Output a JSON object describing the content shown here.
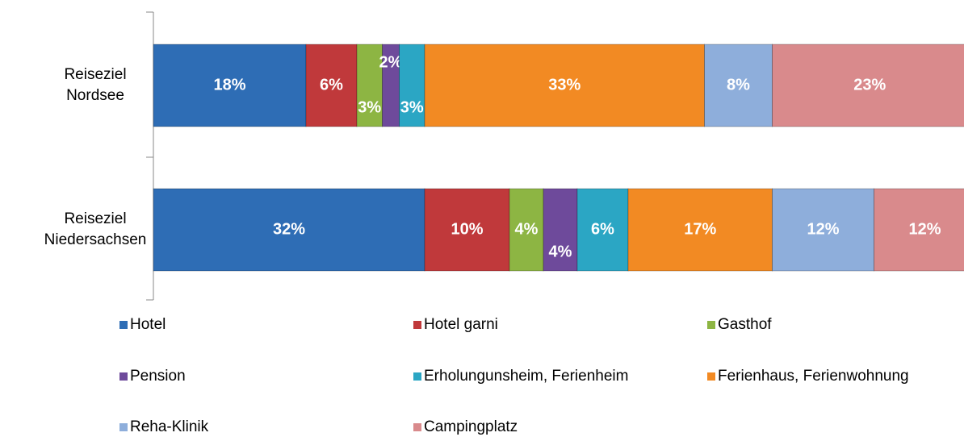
{
  "chart_data": {
    "type": "stacked-bar",
    "categories": [
      "Reiseziel Nordsee",
      "Reiseziel Niedersachsen"
    ],
    "xlim": [
      0,
      100
    ],
    "series": [
      {
        "name": "Hotel",
        "color": "#2e6db5",
        "values": [
          18,
          32
        ],
        "value_labels": [
          "18%",
          "32%"
        ]
      },
      {
        "name": "Hotel garni",
        "color": "#c0393b",
        "values": [
          6,
          10
        ],
        "value_labels": [
          "6%",
          "10%"
        ]
      },
      {
        "name": "Gasthof",
        "color": "#8db543",
        "values": [
          3,
          4
        ],
        "value_labels": [
          "3%",
          "4%"
        ]
      },
      {
        "name": "Pension",
        "color": "#6e4a9b",
        "values": [
          2,
          4
        ],
        "value_labels": [
          "2%",
          "4%"
        ]
      },
      {
        "name": "Erholungunsheim, Ferienheim",
        "color": "#2ba6c4",
        "values": [
          3,
          6
        ],
        "value_labels": [
          "3%",
          "6%"
        ]
      },
      {
        "name": "Ferienhaus, Ferienwohnung",
        "color": "#f28a23",
        "values": [
          33,
          17
        ],
        "value_labels": [
          "33%",
          "17%"
        ]
      },
      {
        "name": "Reha-Klinik",
        "color": "#8eaedb",
        "values": [
          8,
          12
        ],
        "value_labels": [
          "8%",
          "12%"
        ]
      },
      {
        "name": "Campingplatz",
        "color": "#d98a8c",
        "values": [
          23,
          12
        ],
        "value_labels": [
          "23%",
          "12%"
        ]
      }
    ]
  }
}
